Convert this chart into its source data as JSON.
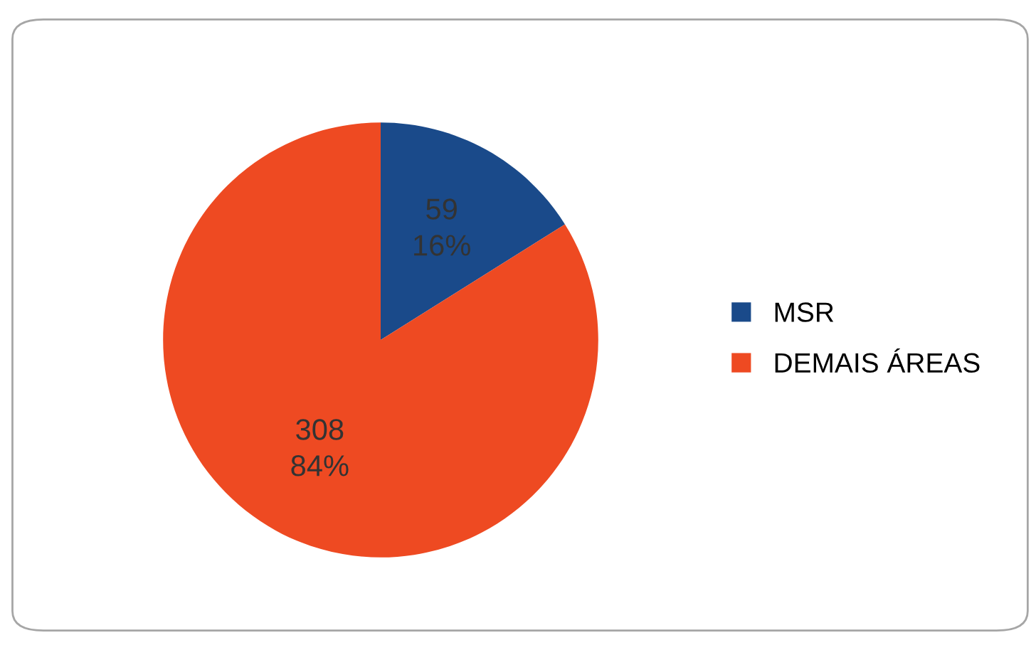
{
  "chart_data": {
    "type": "pie",
    "categories": [
      "MSR",
      "DEMAIS ÁREAS"
    ],
    "values": [
      59,
      308
    ],
    "colors": [
      "#1a4a8a",
      "#ee4a22"
    ],
    "value_labels": [
      "59\n16%",
      "308\n84%"
    ],
    "legend": "right"
  }
}
